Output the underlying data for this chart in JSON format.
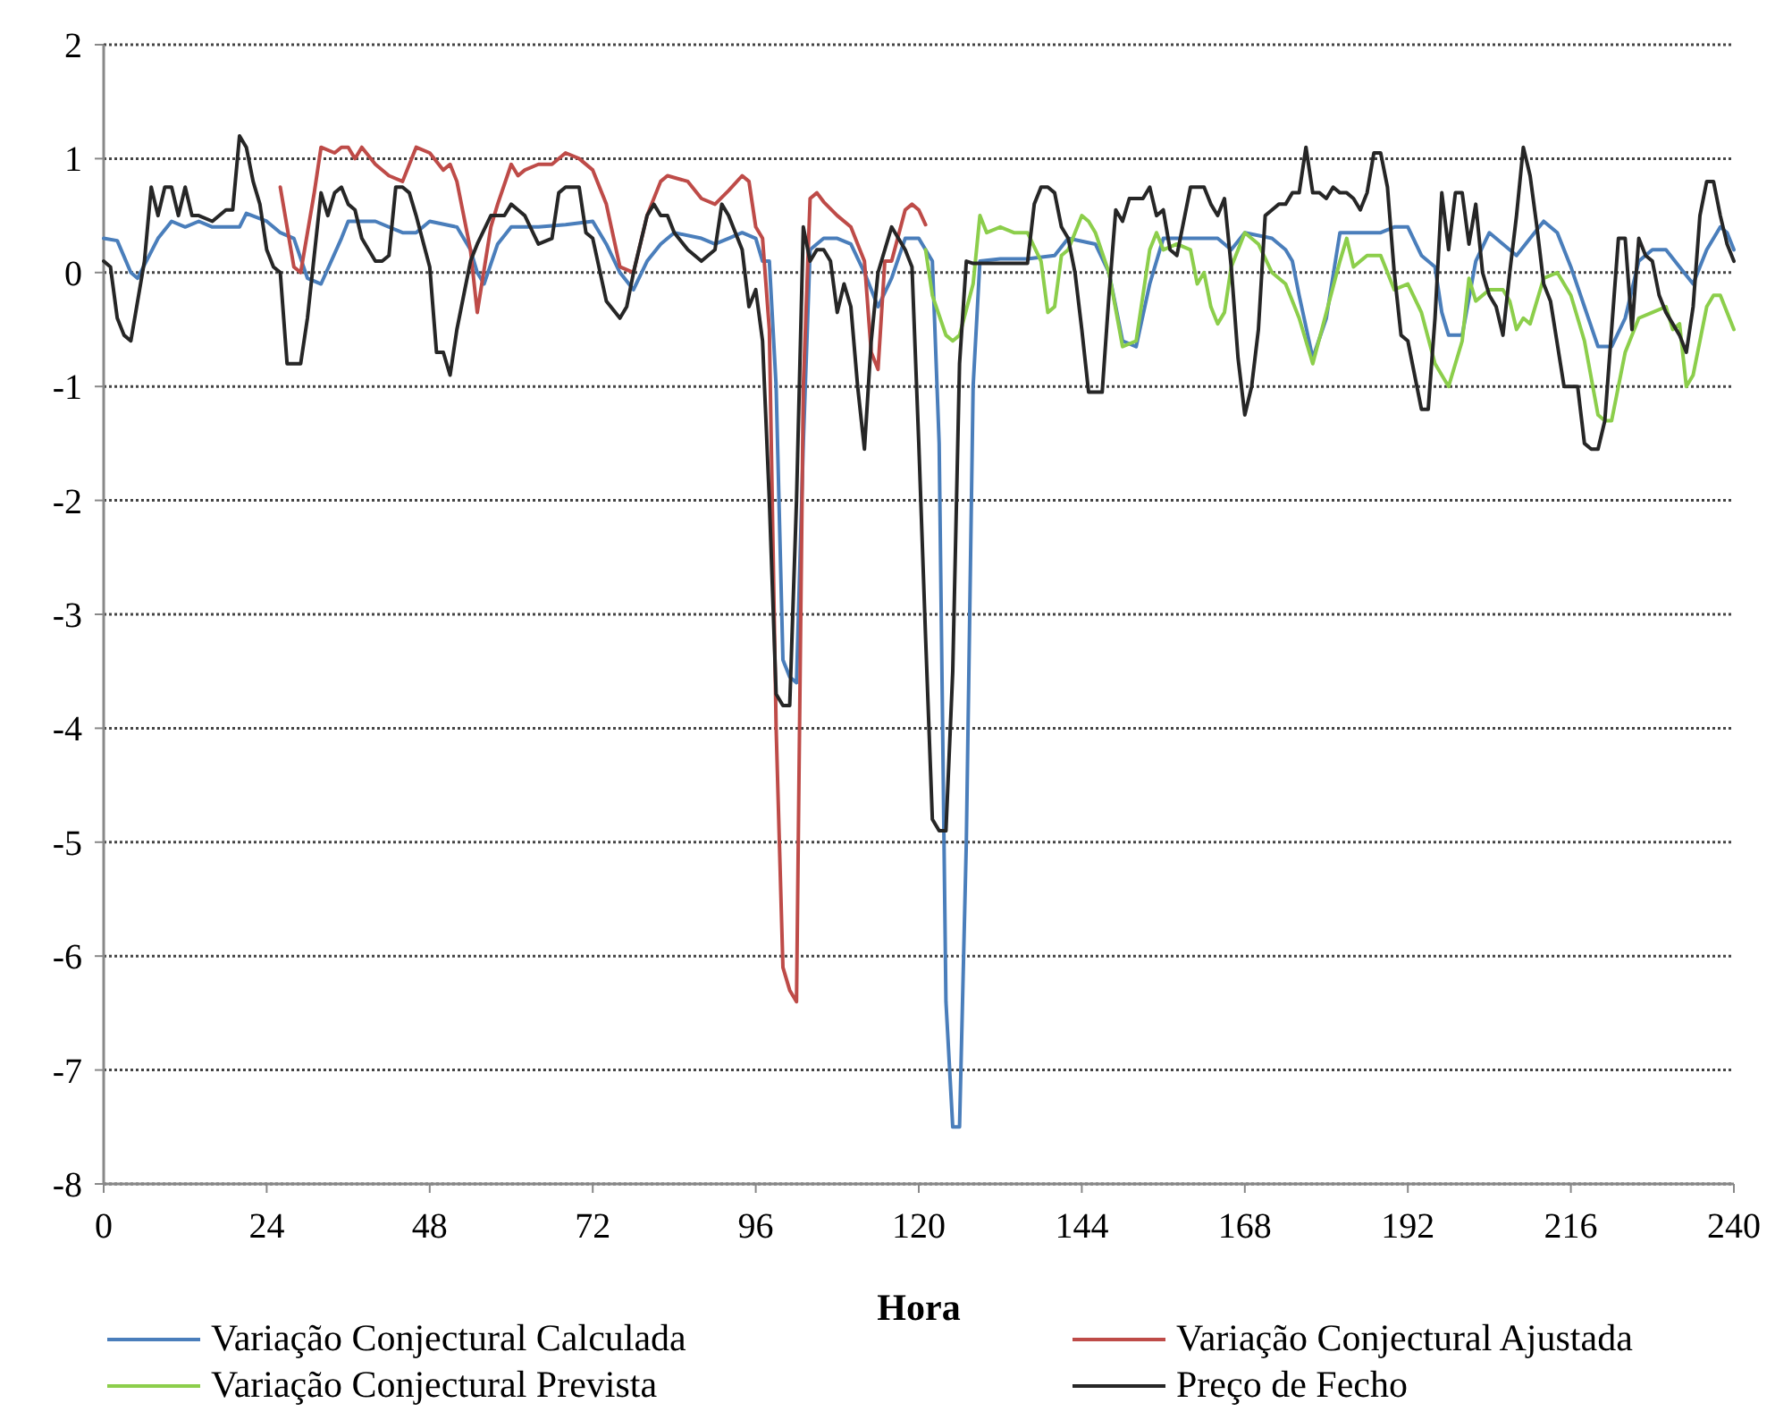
{
  "chart_data": {
    "type": "line",
    "xlabel": "Hora",
    "xlim": [
      0,
      240
    ],
    "xticks": [
      0,
      24,
      48,
      72,
      96,
      120,
      144,
      168,
      192,
      216,
      240
    ],
    "ylim": [
      -8,
      2
    ],
    "yticks": [
      -8,
      -7,
      -6,
      -5,
      -4,
      -3,
      -2,
      -1,
      0,
      1,
      2
    ],
    "grid": "y",
    "legend": "bottom",
    "line_style": "solid",
    "marker": "none",
    "series": [
      {
        "name": "Variação Conjectural Calculada",
        "color": "#4a7ebb",
        "x": [
          0,
          2,
          4,
          5,
          8,
          10,
          12,
          14,
          16,
          20,
          21,
          24,
          26,
          28,
          30,
          32,
          35,
          36,
          40,
          44,
          46,
          48,
          52,
          54,
          55,
          56,
          58,
          60,
          64,
          68,
          72,
          74,
          76,
          78,
          80,
          82,
          84,
          88,
          90,
          92,
          94,
          96,
          97,
          98,
          99,
          100,
          101,
          102,
          103,
          104,
          106,
          108,
          110,
          112,
          114,
          116,
          118,
          120,
          122,
          123,
          124,
          125,
          126,
          127,
          128,
          129,
          132,
          136,
          140,
          142,
          146,
          148,
          150,
          152,
          154,
          156,
          160,
          164,
          166,
          168,
          172,
          174,
          175,
          176,
          178,
          180,
          182,
          186,
          188,
          190,
          192,
          194,
          196,
          197,
          198,
          200,
          202,
          204,
          206,
          208,
          210,
          212,
          214,
          216,
          218,
          220,
          222,
          224,
          226,
          228,
          230,
          232,
          234,
          236,
          238,
          239,
          240
        ],
        "values": [
          0.3,
          0.28,
          0,
          -0.05,
          0.3,
          0.45,
          0.4,
          0.45,
          0.4,
          0.4,
          0.52,
          0.45,
          0.35,
          0.3,
          -0.05,
          -0.1,
          0.3,
          0.45,
          0.45,
          0.35,
          0.35,
          0.45,
          0.4,
          0.2,
          0,
          -0.1,
          0.25,
          0.4,
          0.4,
          0.42,
          0.45,
          0.25,
          0,
          -0.15,
          0.1,
          0.25,
          0.35,
          0.3,
          0.25,
          0.3,
          0.35,
          0.3,
          0.1,
          0.1,
          -1,
          -3.4,
          -3.55,
          -3.6,
          -1.5,
          0.2,
          0.3,
          0.3,
          0.25,
          0,
          -0.3,
          -0.05,
          0.3,
          0.3,
          0.1,
          -1.5,
          -6.4,
          -7.5,
          -7.5,
          -5,
          -1,
          0.1,
          0.12,
          0.12,
          0.15,
          0.3,
          0.25,
          0,
          -0.6,
          -0.65,
          -0.1,
          0.3,
          0.3,
          0.3,
          0.2,
          0.35,
          0.3,
          0.2,
          0.1,
          -0.2,
          -0.75,
          -0.4,
          0.35,
          0.35,
          0.35,
          0.4,
          0.4,
          0.15,
          0.05,
          -0.35,
          -0.55,
          -0.55,
          0.1,
          0.35,
          0.25,
          0.15,
          0.3,
          0.45,
          0.35,
          0.05,
          -0.3,
          -0.65,
          -0.65,
          -0.4,
          0.1,
          0.2,
          0.2,
          0.05,
          -0.1,
          0.2,
          0.4,
          0.35,
          0.2
        ]
      },
      {
        "name": "Variação Conjectural Ajustada",
        "color": "#be4b48",
        "x": [
          26,
          28,
          29,
          31,
          32,
          34,
          35,
          36,
          37,
          38,
          40,
          42,
          44,
          46,
          48,
          50,
          51,
          52,
          54,
          55,
          57,
          58,
          60,
          61,
          62,
          64,
          66,
          68,
          70,
          72,
          74,
          76,
          78,
          80,
          82,
          83,
          86,
          88,
          90,
          92,
          94,
          95,
          96,
          97,
          98,
          99,
          100,
          101,
          102,
          103,
          104,
          105,
          106,
          108,
          110,
          112,
          113,
          114,
          115,
          116,
          118,
          119,
          120,
          121
        ],
        "values": [
          0.75,
          0.05,
          0,
          0.7,
          1.1,
          1.05,
          1.1,
          1.1,
          1,
          1.1,
          0.95,
          0.85,
          0.8,
          1.1,
          1.05,
          0.9,
          0.95,
          0.8,
          0.2,
          -0.35,
          0.4,
          0.6,
          0.95,
          0.85,
          0.9,
          0.95,
          0.95,
          1.05,
          1,
          0.9,
          0.6,
          0.05,
          0,
          0.5,
          0.8,
          0.85,
          0.8,
          0.65,
          0.6,
          0.72,
          0.85,
          0.8,
          0.4,
          0.3,
          -0.5,
          -4,
          -6.1,
          -6.3,
          -6.4,
          -1,
          0.65,
          0.7,
          0.62,
          0.5,
          0.4,
          0.1,
          -0.7,
          -0.85,
          0.1,
          0.1,
          0.55,
          0.6,
          0.55,
          0.42
        ]
      },
      {
        "name": "Variação Conjectural Prevista",
        "color": "#8cce4b",
        "x": [
          121,
          122,
          124,
          125,
          126,
          128,
          129,
          130,
          132,
          134,
          136,
          138,
          139,
          140,
          141,
          142,
          144,
          145,
          146,
          148,
          150,
          152,
          154,
          155,
          156,
          158,
          160,
          161,
          162,
          163,
          164,
          165,
          166,
          168,
          170,
          172,
          174,
          176,
          178,
          180,
          182,
          183,
          184,
          186,
          188,
          189,
          190,
          192,
          194,
          196,
          198,
          200,
          201,
          202,
          204,
          206,
          207,
          208,
          209,
          210,
          212,
          214,
          216,
          218,
          220,
          221,
          222,
          224,
          226,
          228,
          230,
          231,
          232,
          233,
          234,
          236,
          237,
          238,
          240
        ],
        "values": [
          0.2,
          -0.2,
          -0.55,
          -0.6,
          -0.55,
          -0.1,
          0.5,
          0.35,
          0.4,
          0.35,
          0.35,
          0.1,
          -0.35,
          -0.3,
          0.15,
          0.2,
          0.5,
          0.45,
          0.35,
          0,
          -0.65,
          -0.6,
          0.2,
          0.35,
          0.2,
          0.25,
          0.2,
          -0.1,
          0,
          -0.3,
          -0.45,
          -0.35,
          0.05,
          0.35,
          0.25,
          0,
          -0.1,
          -0.4,
          -0.8,
          -0.35,
          0.1,
          0.3,
          0.05,
          0.15,
          0.15,
          0,
          -0.15,
          -0.1,
          -0.35,
          -0.8,
          -1,
          -0.6,
          -0.05,
          -0.25,
          -0.15,
          -0.15,
          -0.25,
          -0.5,
          -0.4,
          -0.45,
          -0.05,
          0,
          -0.2,
          -0.6,
          -1.25,
          -1.3,
          -1.3,
          -0.7,
          -0.4,
          -0.35,
          -0.3,
          -0.5,
          -0.45,
          -1,
          -0.9,
          -0.3,
          -0.2,
          -0.2,
          -0.5
        ]
      },
      {
        "name": "Preço de Fecho",
        "color": "#262626",
        "x": [
          0,
          1,
          2,
          3,
          4,
          6,
          7,
          8,
          9,
          10,
          11,
          12,
          13,
          14,
          16,
          18,
          19,
          20,
          21,
          22,
          23,
          24,
          25,
          26,
          27,
          28,
          29,
          30,
          32,
          33,
          34,
          35,
          36,
          37,
          38,
          40,
          41,
          42,
          43,
          44,
          45,
          46,
          48,
          49,
          50,
          51,
          52,
          54,
          55,
          57,
          58,
          59,
          60,
          61,
          62,
          64,
          66,
          67,
          68,
          70,
          71,
          72,
          74,
          76,
          77,
          78,
          80,
          81,
          82,
          83,
          84,
          86,
          88,
          90,
          91,
          92,
          94,
          95,
          96,
          97,
          98,
          99,
          100,
          101,
          102,
          103,
          104,
          105,
          106,
          107,
          108,
          109,
          110,
          111,
          112,
          113,
          114,
          116,
          117,
          118,
          119,
          120,
          121,
          122,
          123,
          124,
          125,
          126,
          127,
          128,
          136,
          137,
          138,
          139,
          140,
          141,
          142,
          143,
          144,
          145,
          147,
          148,
          149,
          150,
          151,
          153,
          154,
          155,
          156,
          157,
          158,
          160,
          162,
          163,
          164,
          165,
          166,
          167,
          168,
          169,
          170,
          171,
          172,
          173,
          174,
          175,
          176,
          177,
          178,
          179,
          180,
          181,
          182,
          183,
          184,
          185,
          186,
          187,
          188,
          189,
          190,
          191,
          192,
          194,
          195,
          196,
          197,
          198,
          199,
          200,
          201,
          202,
          203,
          204,
          205,
          206,
          207,
          208,
          209,
          210,
          211,
          212,
          213,
          215,
          216,
          217,
          218,
          219,
          220,
          221,
          222,
          223,
          224,
          225,
          226,
          227,
          228,
          229,
          230,
          232,
          233,
          234,
          235,
          236,
          237,
          238,
          239,
          240
        ],
        "values": [
          0.1,
          0.05,
          -0.4,
          -0.55,
          -0.6,
          0.1,
          0.75,
          0.5,
          0.75,
          0.75,
          0.5,
          0.75,
          0.5,
          0.5,
          0.45,
          0.55,
          0.55,
          1.2,
          1.1,
          0.8,
          0.6,
          0.2,
          0.05,
          0,
          -0.8,
          -0.8,
          -0.8,
          -0.4,
          0.7,
          0.5,
          0.7,
          0.75,
          0.6,
          0.55,
          0.3,
          0.1,
          0.1,
          0.15,
          0.75,
          0.75,
          0.7,
          0.5,
          0.05,
          -0.7,
          -0.7,
          -0.9,
          -0.5,
          0.1,
          0.25,
          0.5,
          0.5,
          0.5,
          0.6,
          0.55,
          0.5,
          0.25,
          0.3,
          0.7,
          0.75,
          0.75,
          0.35,
          0.3,
          -0.25,
          -0.4,
          -0.3,
          0,
          0.5,
          0.6,
          0.5,
          0.5,
          0.35,
          0.2,
          0.1,
          0.2,
          0.6,
          0.5,
          0.2,
          -0.3,
          -0.15,
          -0.6,
          -2,
          -3.7,
          -3.8,
          -3.8,
          -2,
          0.4,
          0.1,
          0.2,
          0.2,
          0.1,
          -0.35,
          -0.1,
          -0.3,
          -1,
          -1.55,
          -0.6,
          0,
          0.4,
          0.3,
          0.2,
          0.05,
          -1.5,
          -3.2,
          -4.8,
          -4.9,
          -4.9,
          -3.5,
          -0.8,
          0.1,
          0.08,
          0.08,
          0.6,
          0.75,
          0.75,
          0.7,
          0.4,
          0.3,
          0,
          -0.5,
          -1.05,
          -1.05,
          -0.2,
          0.55,
          0.45,
          0.65,
          0.65,
          0.75,
          0.5,
          0.55,
          0.2,
          0.15,
          0.75,
          0.75,
          0.6,
          0.5,
          0.65,
          0.05,
          -0.75,
          -1.25,
          -1,
          -0.5,
          0.5,
          0.55,
          0.6,
          0.6,
          0.7,
          0.7,
          1.1,
          0.7,
          0.7,
          0.65,
          0.75,
          0.7,
          0.7,
          0.65,
          0.55,
          0.7,
          1.05,
          1.05,
          0.75,
          0,
          -0.55,
          -0.6,
          -1.2,
          -1.2,
          -0.4,
          0.7,
          0.2,
          0.7,
          0.7,
          0.25,
          0.6,
          0,
          -0.2,
          -0.3,
          -0.55,
          0,
          0.5,
          1.1,
          0.85,
          0.4,
          -0.1,
          -0.25,
          -1,
          -1,
          -1,
          -1.5,
          -1.55,
          -1.55,
          -1.3,
          -0.5,
          0.3,
          0.3,
          -0.5,
          0.3,
          0.15,
          0.1,
          -0.2,
          -0.35,
          -0.55,
          -0.7,
          -0.3,
          0.5,
          0.8,
          0.8,
          0.5,
          0.25,
          0.1
        ]
      }
    ]
  }
}
